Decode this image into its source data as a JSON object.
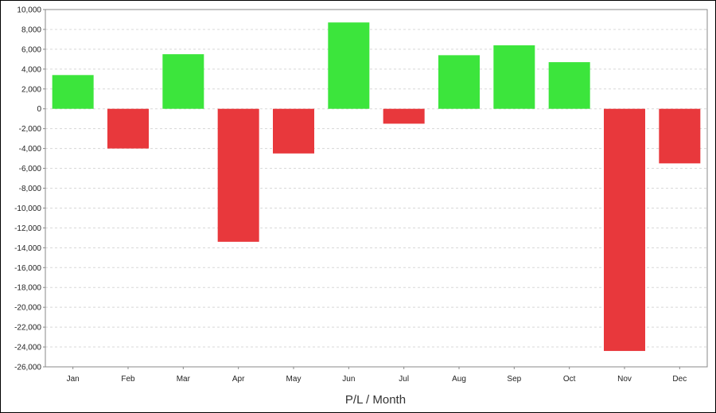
{
  "chart_data": {
    "type": "bar",
    "title": "",
    "xlabel": "P/L / Month",
    "ylabel": "",
    "categories": [
      "Jan",
      "Feb",
      "Mar",
      "Apr",
      "May",
      "Jun",
      "Jul",
      "Aug",
      "Sep",
      "Oct",
      "Nov",
      "Dec"
    ],
    "values": [
      3400,
      -4000,
      5500,
      -13400,
      -4500,
      8700,
      -1500,
      5400,
      6400,
      4700,
      -24400,
      -5500
    ],
    "ylim": [
      -26000,
      10000
    ],
    "yticks": [
      10000,
      8000,
      6000,
      4000,
      2000,
      0,
      -2000,
      -4000,
      -6000,
      -8000,
      -10000,
      -12000,
      -14000,
      -16000,
      -18000,
      -20000,
      -22000,
      -24000,
      -26000
    ],
    "ytick_labels": [
      "10,000",
      "8,000",
      "6,000",
      "4,000",
      "2,000",
      "0",
      "-2,000",
      "-4,000",
      "-6,000",
      "-8,000",
      "-10,000",
      "-12,000",
      "-14,000",
      "-16,000",
      "-18,000",
      "-20,000",
      "-22,000",
      "-24,000",
      "-26,000"
    ],
    "grid": true,
    "colors": {
      "positive": "#3ce53c",
      "negative": "#e8383c",
      "grid": "#d8d8d8",
      "axis": "#888888"
    }
  }
}
